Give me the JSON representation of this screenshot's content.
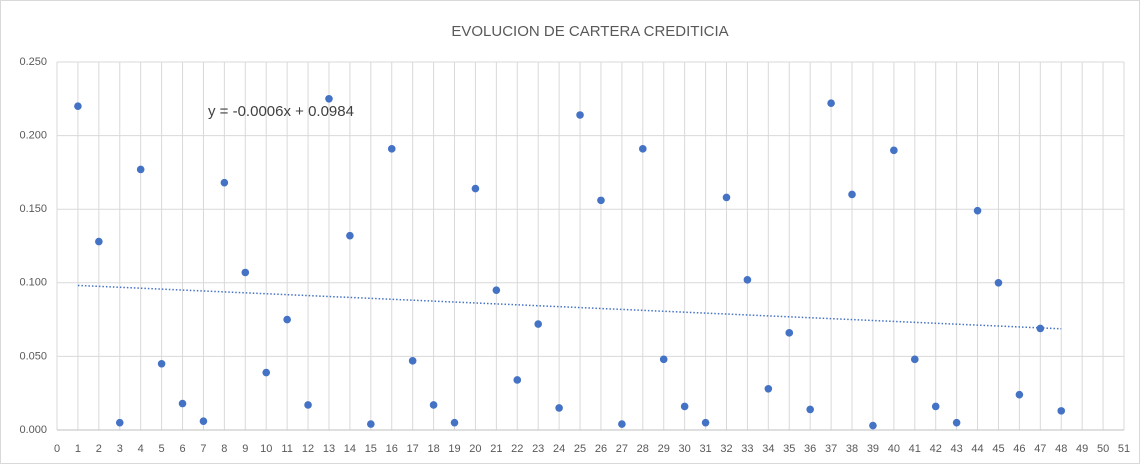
{
  "chart_data": {
    "type": "scatter",
    "title": "EVOLUCION DE CARTERA CREDITICIA",
    "x": [
      1,
      2,
      3,
      4,
      5,
      6,
      7,
      8,
      9,
      10,
      11,
      12,
      13,
      14,
      15,
      16,
      17,
      18,
      19,
      20,
      21,
      22,
      23,
      24,
      25,
      26,
      27,
      28,
      29,
      30,
      31,
      32,
      33,
      34,
      35,
      36,
      37,
      38,
      39,
      40,
      41,
      42,
      43,
      44,
      45,
      46,
      47,
      48
    ],
    "series": [
      {
        "color": "#4472c4",
        "values": [
          0.22,
          0.128,
          0.005,
          0.177,
          0.045,
          0.018,
          0.006,
          0.168,
          0.107,
          0.039,
          0.075,
          0.017,
          0.225,
          0.132,
          0.004,
          0.191,
          0.047,
          0.017,
          0.005,
          0.164,
          0.095,
          0.034,
          0.072,
          0.015,
          0.214,
          0.156,
          0.004,
          0.191,
          0.048,
          0.016,
          0.005,
          0.158,
          0.102,
          0.028,
          0.066,
          0.014,
          0.222,
          0.16,
          0.003,
          0.19,
          0.048,
          0.016,
          0.005,
          0.149,
          0.1,
          0.024,
          0.069,
          0.013
        ]
      }
    ],
    "trendline": {
      "type": "linear",
      "label": "y = -0.0006x + 0.0984"
    },
    "xlim": [
      0,
      51
    ],
    "xticks": [
      0,
      1,
      2,
      3,
      4,
      5,
      6,
      7,
      8,
      9,
      10,
      11,
      12,
      13,
      14,
      15,
      16,
      17,
      18,
      19,
      20,
      21,
      22,
      23,
      24,
      25,
      26,
      27,
      28,
      29,
      30,
      31,
      32,
      33,
      34,
      35,
      36,
      37,
      38,
      39,
      40,
      41,
      42,
      43,
      44,
      45,
      46,
      47,
      48,
      49,
      50,
      51
    ],
    "ylim": [
      0,
      0.25
    ],
    "yticks": [
      {
        "value": 0,
        "label": "0.000"
      },
      {
        "value": 0.05,
        "label": "0.050"
      },
      {
        "value": 0.1,
        "label": "0.100"
      },
      {
        "value": 0.15,
        "label": "0.150"
      },
      {
        "value": 0.2,
        "label": "0.200"
      },
      {
        "value": 0.25,
        "label": "0.250"
      }
    ],
    "grid": true
  }
}
